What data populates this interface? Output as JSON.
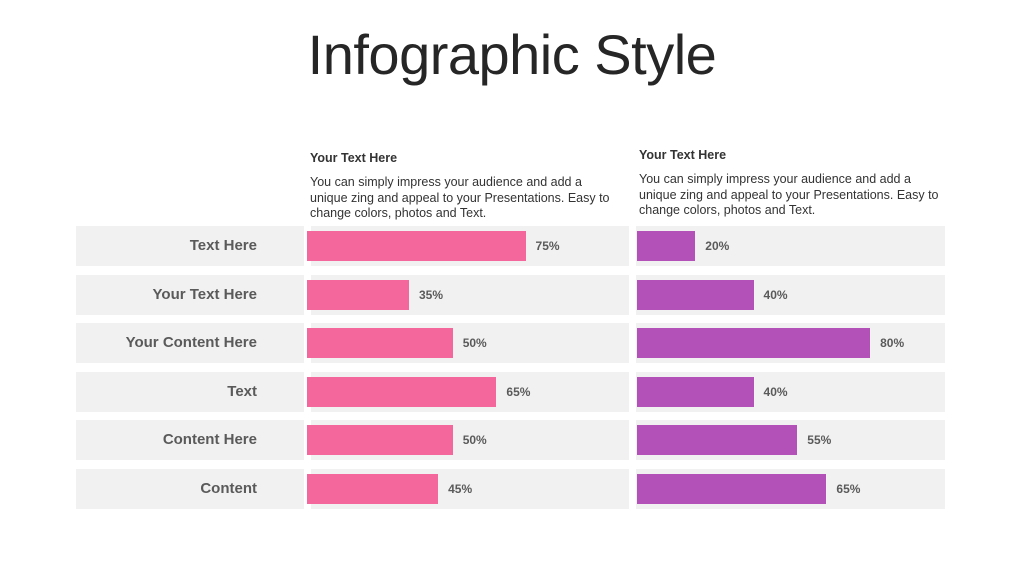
{
  "title": "Infographic Style",
  "columns": [
    {
      "header": "Your Text  Here",
      "body": "You can simply impress your audience and add a unique zing and appeal to your Presentations. Easy to change colors, photos and Text."
    },
    {
      "header": "Your Text  Here",
      "body": "You can simply impress your audience and add a unique zing and appeal to your Presentations. Easy to change colors, photos and Text."
    }
  ],
  "chart_data": {
    "type": "bar",
    "orientation": "horizontal",
    "categories": [
      "Text Here",
      "Your Text Here",
      "Your Content  Here",
      "Text",
      "Content Here",
      "Content"
    ],
    "series": [
      {
        "values": [
          75,
          35,
          50,
          65,
          50,
          45
        ],
        "labels": [
          "75%",
          "35%",
          "50%",
          "65%",
          "50%",
          "45%"
        ],
        "color": "#f4679d"
      },
      {
        "values": [
          20,
          40,
          80,
          40,
          55,
          65
        ],
        "labels": [
          "20%",
          "40%",
          "80%",
          "40%",
          "55%",
          "65%"
        ],
        "color": "#b451b9"
      }
    ],
    "xlim": [
      0,
      100
    ],
    "grid": false
  }
}
